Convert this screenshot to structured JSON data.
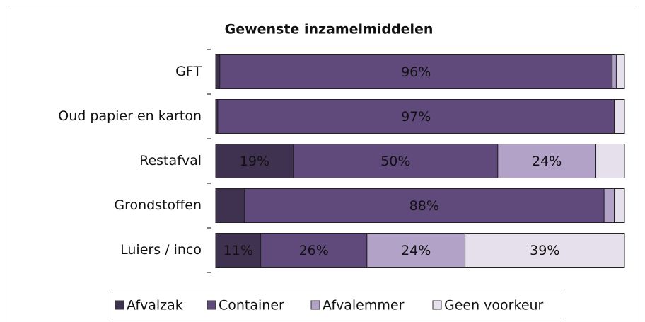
{
  "chart_data": {
    "type": "stacked-bar-horizontal",
    "title": "Gewenste inzamelmiddelen",
    "categories": [
      "GFT",
      "Oud papier en karton",
      "Restafval",
      "Grondstoffen",
      "Luiers /  inco"
    ],
    "xlim": [
      0,
      100
    ],
    "series": [
      {
        "name": "Afvalzak",
        "color": "#3f3150",
        "values": [
          1,
          0.5,
          19,
          7,
          11
        ],
        "value_labels": [
          null,
          null,
          "19%",
          null,
          "11%"
        ]
      },
      {
        "name": "Container",
        "color": "#604a7b",
        "values": [
          96,
          97,
          50,
          88,
          26
        ],
        "value_labels": [
          "96%",
          "97%",
          "50%",
          "88%",
          "26%"
        ]
      },
      {
        "name": "Afvalemmer",
        "color": "#b2a2c7",
        "values": [
          1,
          0,
          24,
          2.5,
          24
        ],
        "value_labels": [
          null,
          null,
          "24%",
          null,
          "24%"
        ]
      },
      {
        "name": "Geen voorkeur",
        "color": "#e6e0ec",
        "values": [
          2,
          2.5,
          7,
          2.5,
          39
        ],
        "value_labels": [
          null,
          null,
          null,
          null,
          "39%"
        ]
      }
    ],
    "legend": "bottom"
  }
}
